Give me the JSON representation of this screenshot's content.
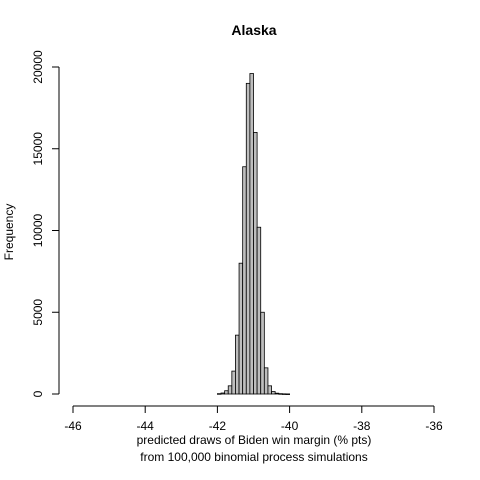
{
  "chart_data": {
    "type": "bar",
    "title": "Alaska",
    "xlabel_line1": "predicted draws of Biden win margin (% pts)",
    "xlabel_line2": "from 100,000 binomial process simulations",
    "ylabel": "Frequency",
    "xlim": [
      -46,
      -36
    ],
    "ylim": [
      0,
      20000
    ],
    "x_ticks": [
      -46,
      -44,
      -42,
      -40,
      -38,
      -36
    ],
    "y_ticks": [
      0,
      5000,
      10000,
      15000,
      20000
    ],
    "bin_width": 0.1,
    "bins": [
      {
        "x0": -42.0,
        "count": 20
      },
      {
        "x0": -41.9,
        "count": 60
      },
      {
        "x0": -41.8,
        "count": 200
      },
      {
        "x0": -41.7,
        "count": 500
      },
      {
        "x0": -41.6,
        "count": 1400
      },
      {
        "x0": -41.5,
        "count": 3600
      },
      {
        "x0": -41.4,
        "count": 8000
      },
      {
        "x0": -41.3,
        "count": 13900
      },
      {
        "x0": -41.2,
        "count": 19000
      },
      {
        "x0": -41.1,
        "count": 19600
      },
      {
        "x0": -41.0,
        "count": 16000
      },
      {
        "x0": -40.9,
        "count": 10200
      },
      {
        "x0": -40.8,
        "count": 5000
      },
      {
        "x0": -40.7,
        "count": 1600
      },
      {
        "x0": -40.6,
        "count": 500
      },
      {
        "x0": -40.5,
        "count": 150
      },
      {
        "x0": -40.4,
        "count": 50
      },
      {
        "x0": -40.3,
        "count": 20
      },
      {
        "x0": -40.2,
        "count": 10
      },
      {
        "x0": -40.1,
        "count": 5
      }
    ],
    "bar_fill": "#bebebe",
    "bar_stroke": "#000000"
  }
}
